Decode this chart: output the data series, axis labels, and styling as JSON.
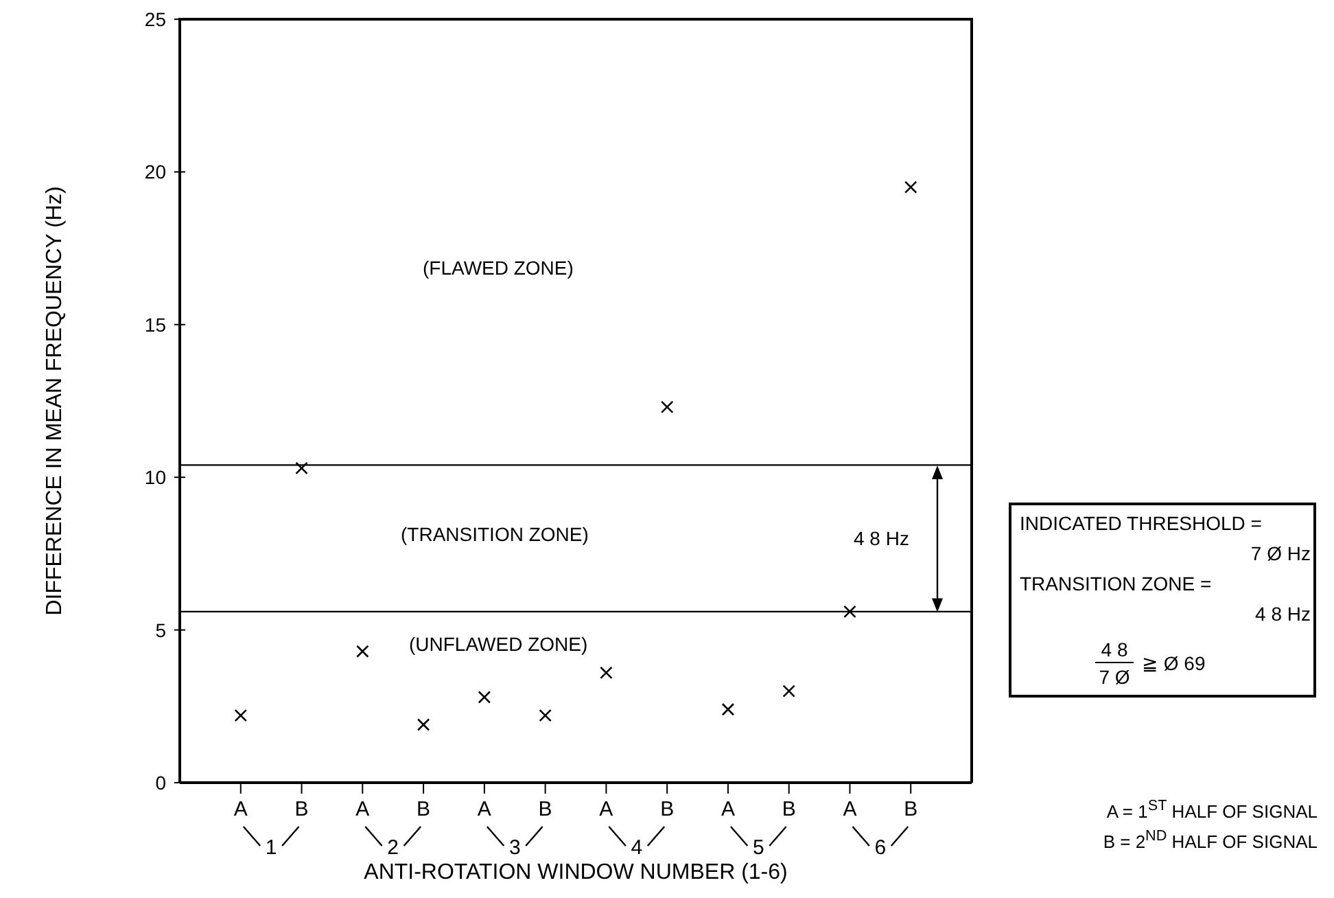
{
  "chart_data": {
    "type": "scatter",
    "xlabel": "ANTI-ROTATION WINDOW NUMBER (1-6)",
    "ylabel": "DIFFERENCE IN MEAN FREQUENCY (Hz)",
    "categories": [
      "A",
      "B",
      "A",
      "B",
      "A",
      "B",
      "A",
      "B",
      "A",
      "B",
      "A",
      "B"
    ],
    "series": [
      {
        "color": "#000000",
        "values": [
          2.2,
          10.3,
          4.3,
          1.9,
          2.8,
          2.2,
          3.6,
          12.3,
          2.4,
          3.0,
          5.6,
          19.5
        ]
      }
    ],
    "ylim": [
      0,
      25
    ],
    "yticks": [
      0,
      5,
      10,
      15,
      20,
      25
    ],
    "marker": "cross",
    "ref_lines": [
      {
        "axis": "y",
        "value": 10.4,
        "color": "#000000"
      },
      {
        "axis": "y",
        "value": 5.6,
        "color": "#000000"
      }
    ],
    "annotations": [
      "(FLAWED ZONE)",
      "(TRANSITION ZONE)",
      "(UNFLAWED ZONE)",
      "4 8 Hz",
      "INDICATED THRESHOLD =",
      "7 Ø Hz",
      "TRANSITION ZONE =",
      "4 8 Hz",
      "4 8",
      "7 Ø",
      "≧ Ø 69",
      "A = 1$^{ST}$ HALF OF SIGNAL",
      "B = 2$^{ND}$ HALF OF SIGNAL",
      "1",
      "2",
      "3",
      "4",
      "5",
      "6"
    ]
  }
}
